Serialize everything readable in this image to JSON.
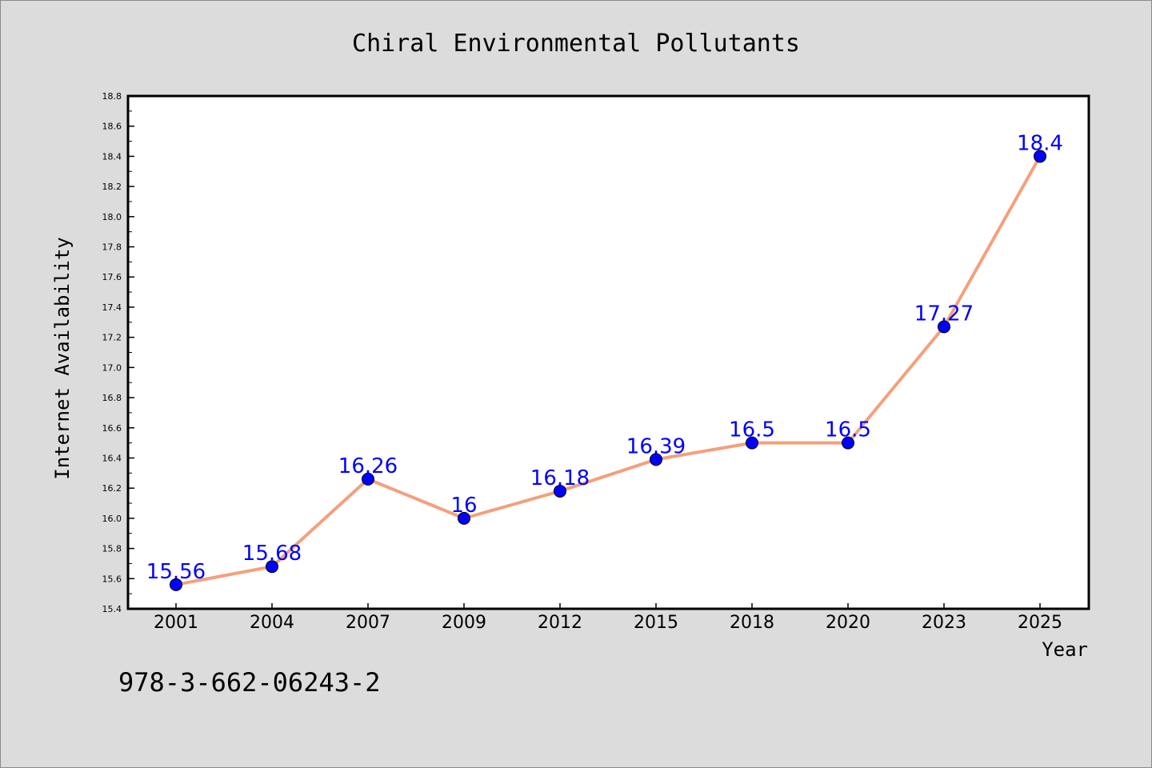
{
  "chart_data": {
    "type": "line",
    "title": "Chiral Environmental Pollutants",
    "xlabel": "Year",
    "ylabel": "Internet Availability",
    "categories": [
      "2001",
      "2004",
      "2007",
      "2009",
      "2012",
      "2015",
      "2018",
      "2020",
      "2023",
      "2025"
    ],
    "series": [
      {
        "values": [
          15.56,
          15.68,
          16.26,
          16.0,
          16.18,
          16.39,
          16.5,
          16.5,
          17.27,
          18.4
        ],
        "data_labels": [
          "15.56",
          "15.68",
          "16.26",
          "16",
          "16.18",
          "16.39",
          "16.5",
          "16.5",
          "17.27",
          "18.4"
        ],
        "line_color": "#f4a07c",
        "marker_color": "#0000ff",
        "label_color": "#0000ff"
      }
    ],
    "ylim": [
      15.4,
      18.8
    ],
    "yticks": [
      "15.4",
      "15.6",
      "15.8",
      "16.0",
      "16.2",
      "16.4",
      "16.6",
      "16.8",
      "17.0",
      "17.2",
      "17.4",
      "17.6",
      "17.8",
      "18.0",
      "18.2",
      "18.4",
      "18.6",
      "18.8"
    ],
    "grid": false,
    "legend": "none"
  },
  "annotation": "978-3-662-06243-2",
  "colors": {
    "background": "#dcdcdc",
    "plot_background": "#ffffff",
    "axis": "#000000"
  }
}
